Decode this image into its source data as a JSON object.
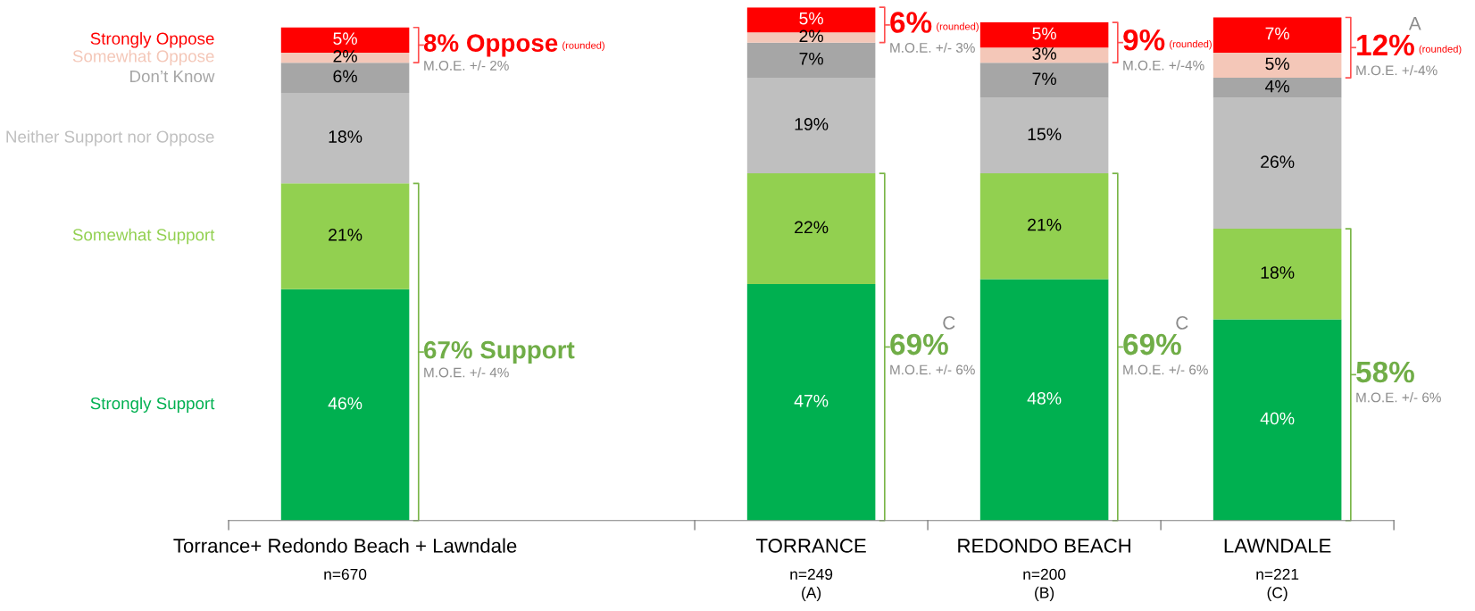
{
  "chart_data": {
    "type": "bar",
    "stacked": true,
    "legend": false,
    "tick_labels": "x",
    "categories": [
      "Torrance+ Redondo Beach + Lawndale\nn=670",
      null,
      "TORRANCE\nn=249\n(A)",
      "REDONDO BEACH\nn=200\n(B)",
      "LAWNDALE\nn=221\n(C)"
    ],
    "series": [
      {
        "name": "Strongly Support",
        "color": "#00b050",
        "values": [
          46,
          null,
          47,
          48,
          40
        ],
        "value_labels": [
          "46%",
          null,
          "47%",
          "48%",
          "40%"
        ]
      },
      {
        "name": "Somewhat Support",
        "color": "#92d050",
        "values": [
          21,
          null,
          22,
          21,
          18
        ],
        "value_labels": [
          "21%",
          null,
          "22%",
          "21%",
          "18%"
        ]
      },
      {
        "name": "Neither Support nor Oppose",
        "color": "#bfbfbf",
        "values": [
          18,
          null,
          19,
          15,
          26
        ],
        "value_labels": [
          "18%",
          null,
          "19%",
          "15%",
          "26%"
        ]
      },
      {
        "name": "Don’t Know",
        "color": "#a6a6a6",
        "values": [
          6,
          null,
          7,
          7,
          4
        ],
        "value_labels": [
          "6%",
          null,
          "7%",
          "7%",
          "4%"
        ]
      },
      {
        "name": "Somewhat Oppose",
        "color": "#f4c7b8",
        "values": [
          2,
          null,
          2,
          3,
          5
        ],
        "value_labels": [
          "2%",
          null,
          "2%",
          "3%",
          "5%"
        ]
      },
      {
        "name": "Strongly Oppose",
        "color": "#ff0000",
        "values": [
          5,
          null,
          5,
          5,
          7
        ],
        "value_labels": [
          "5%",
          null,
          "5%",
          "5%",
          "7%"
        ]
      }
    ],
    "annotations": [
      "67% Support",
      "M.O.E. +/- 4%",
      "8% Oppose",
      "(rounded)",
      "M.O.E. +/- 2%",
      "69%",
      "C",
      "M.O.E. +/- 6%",
      "6%",
      "(rounded)",
      "M.O.E. +/- 3%",
      "69%",
      "C",
      "M.O.E. +/- 6%",
      "9%",
      "(rounded)",
      "M.O.E. +/-4%",
      "58%",
      "M.O.E. +/- 6%",
      "12%",
      "A",
      "(rounded)",
      "M.O.E. +/-4%"
    ]
  }
}
